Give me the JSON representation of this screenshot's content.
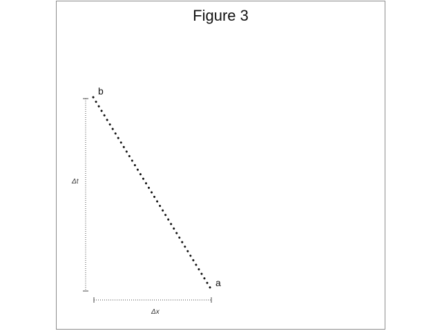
{
  "figure": {
    "title": "Figure 3"
  },
  "diagram": {
    "point_a_label": "a",
    "point_b_label": "b",
    "delta_t_label": "Δt",
    "delta_x_label": "Δx",
    "line_style": "dotted",
    "colors": {
      "ink": "#111111",
      "frame": "#8a8a8a",
      "dimension": "#444444"
    }
  }
}
